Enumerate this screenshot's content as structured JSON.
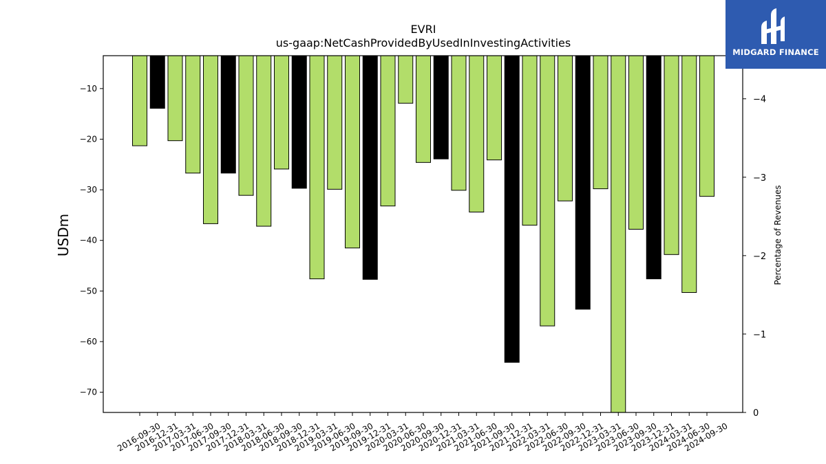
{
  "chart_data": {
    "type": "bar",
    "title": "EVRI",
    "subtitle": "us-gaap:NetCashProvidedByUsedInInvestingActivities",
    "ylabel": "USDm",
    "ylabel_right": "Percentage of Revenues",
    "ylim": [
      -74,
      -3.5
    ],
    "ylim_right": [
      0,
      -4.55
    ],
    "yticks": [
      -10,
      -20,
      -30,
      -40,
      -50,
      -60,
      -70
    ],
    "yticks_right": [
      -4,
      -3,
      -2,
      -1,
      0
    ],
    "categories": [
      "2016-09-30",
      "2016-12-31",
      "2017-03-31",
      "2017-06-30",
      "2017-09-30",
      "2017-12-31",
      "2018-03-31",
      "2018-06-30",
      "2018-09-30",
      "2018-12-31",
      "2019-03-31",
      "2019-06-30",
      "2019-09-30",
      "2019-12-31",
      "2020-03-31",
      "2020-06-30",
      "2020-09-30",
      "2020-12-31",
      "2021-03-31",
      "2021-06-30",
      "2021-09-30",
      "2021-12-31",
      "2022-03-31",
      "2022-06-30",
      "2022-09-30",
      "2022-12-31",
      "2023-03-31",
      "2023-06-30",
      "2023-09-30",
      "2023-12-31",
      "2024-03-31",
      "2024-06-30",
      "2024-09-30"
    ],
    "values": [
      -21.3,
      -13.9,
      -20.3,
      -26.7,
      -36.7,
      -26.7,
      -31.1,
      -37.2,
      -25.9,
      -29.7,
      -47.6,
      -29.9,
      -41.5,
      -47.7,
      -33.2,
      -12.9,
      -24.6,
      -23.9,
      -30.1,
      -34.4,
      -24.1,
      -64.1,
      -37.0,
      -56.9,
      -32.2,
      -53.6,
      -29.8,
      -74.0,
      -37.8,
      -47.6,
      -42.8,
      -50.3,
      -31.3
    ],
    "bar_highlight": [
      "green",
      "black",
      "green",
      "green",
      "green",
      "black",
      "green",
      "green",
      "green",
      "black",
      "green",
      "green",
      "green",
      "black",
      "green",
      "green",
      "green",
      "black",
      "green",
      "green",
      "green",
      "black",
      "green",
      "green",
      "green",
      "black",
      "green",
      "green",
      "green",
      "black",
      "green",
      "green",
      "green"
    ],
    "colors": {
      "green": "#b2dd6a",
      "black": "#000000"
    },
    "grid": false,
    "legend": "none"
  },
  "logo": {
    "text": "MIDGARD FINANCE",
    "color": "#2e5bb0"
  }
}
